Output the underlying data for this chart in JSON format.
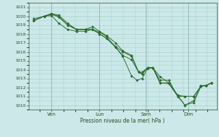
{
  "title": "",
  "xlabel": "Pression niveau de la mer( hPa )",
  "ylabel": "",
  "bg_color": "#cce8e8",
  "grid_color": "#99cccc",
  "line_color": "#2d6a2d",
  "marker_color": "#2d6a2d",
  "ylim": [
    1009.5,
    1021.5
  ],
  "yticks": [
    1010,
    1011,
    1012,
    1013,
    1014,
    1015,
    1016,
    1017,
    1018,
    1019,
    1020,
    1021
  ],
  "day_positions": [
    0.13,
    0.4,
    0.66,
    0.9
  ],
  "day_labels": [
    "Ven",
    "Lun",
    "Sam",
    "Dim"
  ],
  "series": [
    [
      0.03,
      1019.5,
      0.09,
      1020.0,
      0.13,
      1020.05,
      0.17,
      1019.2,
      0.22,
      1018.5,
      0.27,
      1018.3,
      0.32,
      1018.3,
      0.36,
      1018.5,
      0.4,
      1018.2,
      0.44,
      1017.7,
      0.49,
      1016.5,
      0.53,
      1015.5,
      0.58,
      1013.3,
      0.61,
      1012.8,
      0.64,
      1013.0,
      0.67,
      1014.1,
      0.7,
      1014.2,
      0.74,
      1013.2,
      0.79,
      1012.5,
      0.84,
      1011.1,
      0.88,
      1010.0,
      0.93,
      1010.5,
      0.97,
      1012.2,
      1.0,
      1012.2,
      1.03,
      1012.5
    ],
    [
      0.03,
      1019.5,
      0.09,
      1020.0,
      0.13,
      1020.2,
      0.17,
      1020.0,
      0.22,
      1019.0,
      0.27,
      1018.5,
      0.32,
      1018.5,
      0.36,
      1018.5,
      0.4,
      1018.0,
      0.44,
      1017.5,
      0.49,
      1016.6,
      0.53,
      1016.0,
      0.58,
      1015.5,
      0.62,
      1013.7,
      0.64,
      1013.7,
      0.67,
      1014.2,
      0.7,
      1014.2,
      0.74,
      1012.8,
      0.79,
      1012.8,
      0.84,
      1011.0,
      0.88,
      1011.0,
      0.93,
      1011.0,
      0.97,
      1012.1,
      1.0,
      1012.2,
      1.03,
      1012.5
    ],
    [
      0.03,
      1019.7,
      0.09,
      1020.0,
      0.13,
      1020.3,
      0.17,
      1020.1,
      0.22,
      1019.2,
      0.27,
      1018.5,
      0.32,
      1018.5,
      0.36,
      1018.8,
      0.4,
      1018.3,
      0.44,
      1017.8,
      0.49,
      1017.0,
      0.53,
      1016.1,
      0.58,
      1015.6,
      0.62,
      1013.7,
      0.64,
      1013.5,
      0.67,
      1014.2,
      0.7,
      1014.2,
      0.74,
      1012.5,
      0.79,
      1012.4,
      0.84,
      1011.0,
      0.88,
      1010.0,
      0.93,
      1010.3,
      0.97,
      1012.1,
      1.0,
      1012.2,
      1.03,
      1012.5
    ],
    [
      0.03,
      1019.5,
      0.09,
      1020.0,
      0.13,
      1020.2,
      0.17,
      1019.9,
      0.22,
      1019.0,
      0.27,
      1018.5,
      0.32,
      1018.5,
      0.36,
      1018.5,
      0.4,
      1018.0,
      0.44,
      1017.5,
      0.49,
      1016.5,
      0.53,
      1015.6,
      0.58,
      1015.1,
      0.62,
      1013.7,
      0.64,
      1013.5,
      0.67,
      1014.2,
      0.7,
      1014.2,
      0.74,
      1012.5,
      0.79,
      1012.5,
      0.84,
      1011.1,
      0.88,
      1011.0,
      0.93,
      1011.0,
      0.97,
      1012.1,
      1.0,
      1012.2,
      1.03,
      1012.5
    ]
  ]
}
